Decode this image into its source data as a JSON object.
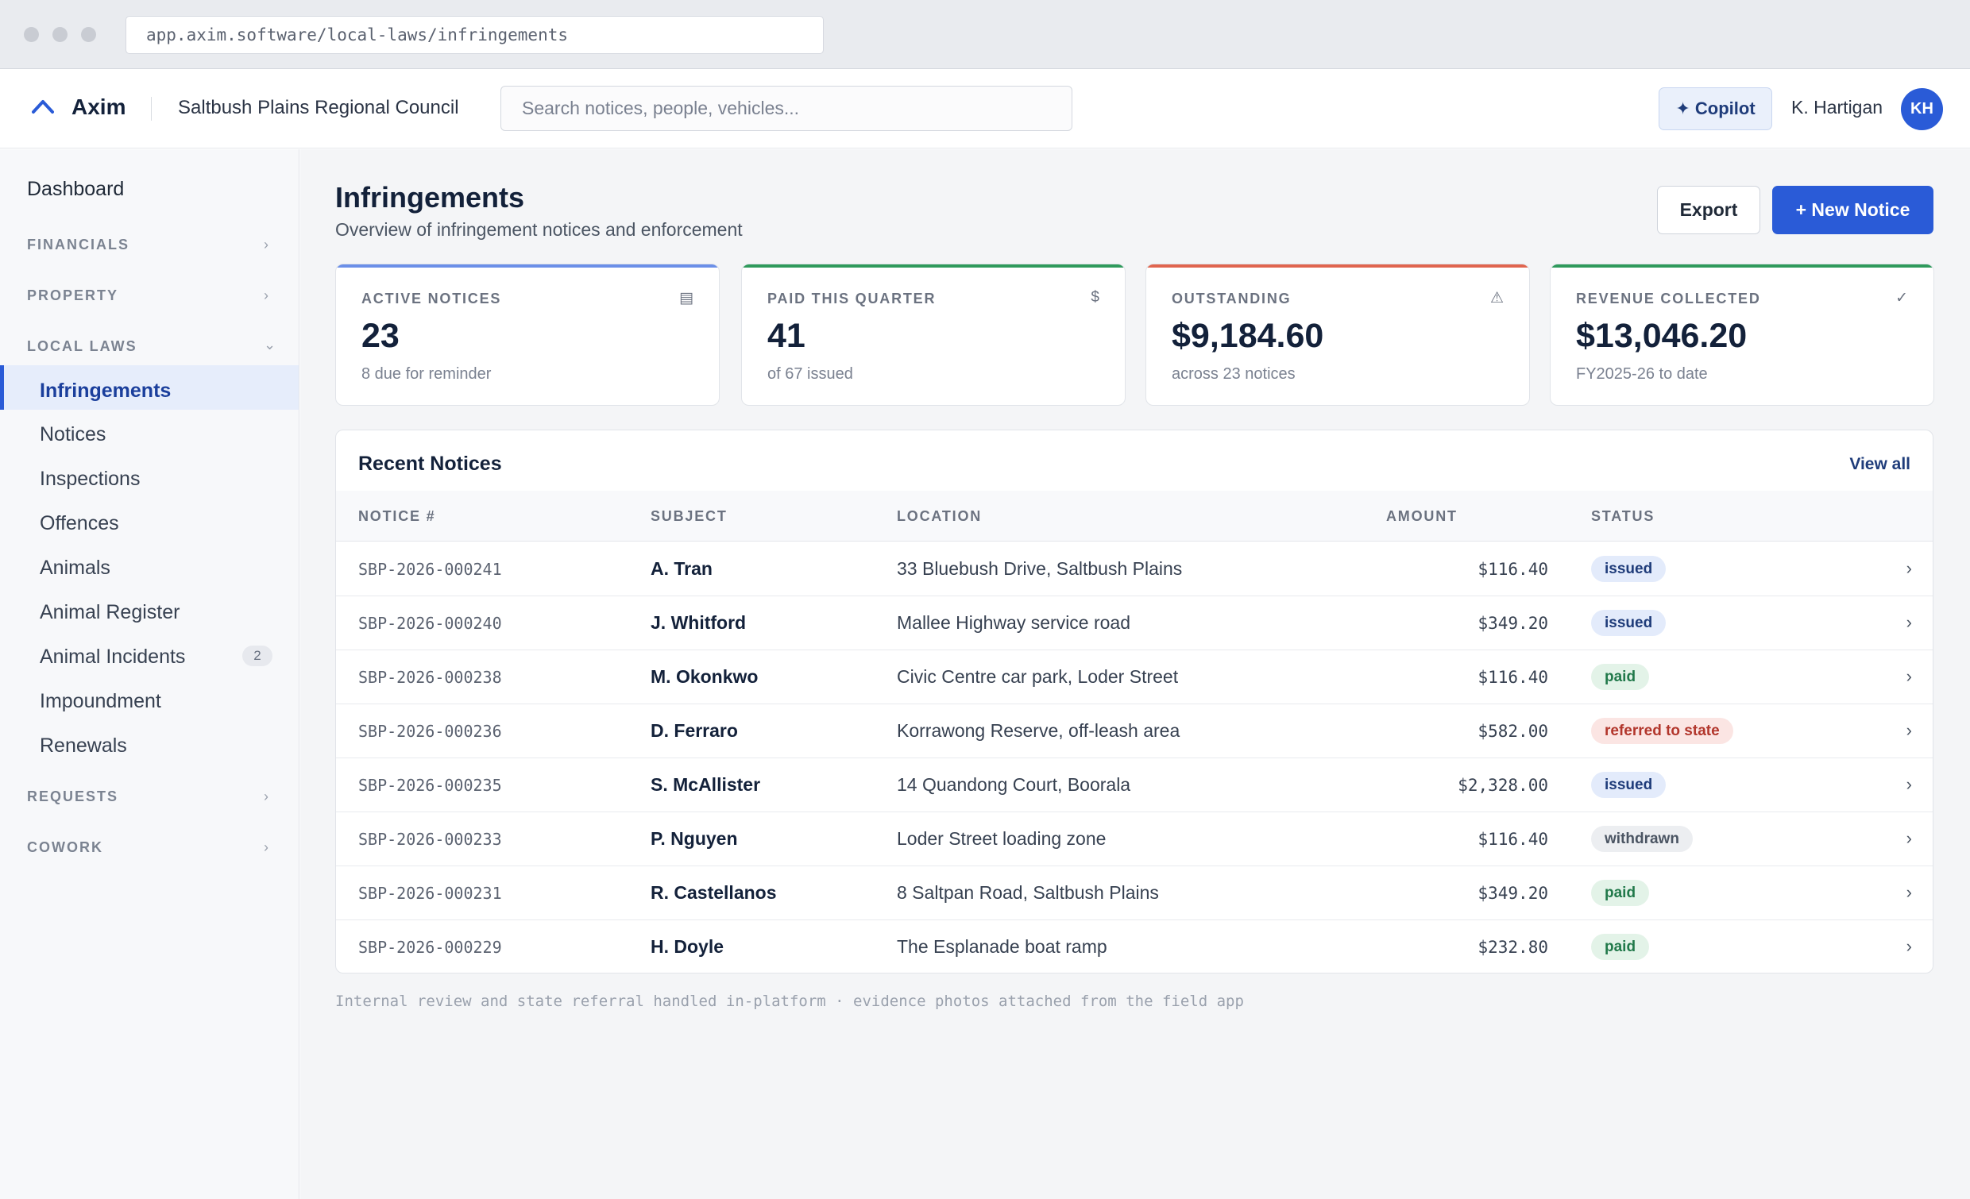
{
  "browser": {
    "url": "app.axim.software/local-laws/infringements"
  },
  "header": {
    "brand": "Axim",
    "org": "Saltbush Plains Regional Council",
    "search_placeholder": "Search notices, people, vehicles...",
    "copilot_label": "✦ Copilot",
    "user_name": "K. Hartigan",
    "user_initials": "KH"
  },
  "sidebar": {
    "dashboard": "Dashboard",
    "groups": {
      "financials": "FINANCIALS",
      "property": "PROPERTY",
      "local_laws": "LOCAL LAWS",
      "requests": "REQUESTS",
      "cowork": "COWORK"
    },
    "items": [
      {
        "label": "Infringements",
        "active": true
      },
      {
        "label": "Notices"
      },
      {
        "label": "Inspections"
      },
      {
        "label": "Offences"
      },
      {
        "label": "Animals"
      },
      {
        "label": "Animal Register"
      },
      {
        "label": "Animal Incidents",
        "count": "2"
      },
      {
        "label": "Impoundment"
      },
      {
        "label": "Renewals"
      }
    ]
  },
  "page": {
    "title": "Infringements",
    "subtitle": "Overview of infringement notices and enforcement",
    "export_label": "Export",
    "new_notice_label": "+ New Notice"
  },
  "cards": [
    {
      "label": "ACTIVE NOTICES",
      "icon": "▤",
      "value": "23",
      "sub": "8 due for reminder",
      "color": "#6b8fe8"
    },
    {
      "label": "PAID THIS QUARTER",
      "icon": "$",
      "value": "41",
      "sub": "of 67 issued",
      "color": "#2f9a5c"
    },
    {
      "label": "OUTSTANDING",
      "icon": "⚠",
      "value": "$9,184.60",
      "sub": "across 23 notices",
      "color": "#e0654f"
    },
    {
      "label": "REVENUE COLLECTED",
      "icon": "✓",
      "value": "$13,046.20",
      "sub": "FY2025-26 to date",
      "color": "#2f9a5c"
    }
  ],
  "recent": {
    "title": "Recent Notices",
    "view_all": "View all",
    "columns": {
      "notice": "NOTICE #",
      "subject": "SUBJECT",
      "location": "LOCATION",
      "amount": "AMOUNT",
      "status": "STATUS"
    },
    "rows": [
      {
        "notice": "SBP-2026-000241",
        "subject": "A. Tran",
        "location": "33 Bluebush Drive, Saltbush Plains",
        "amount": "$116.40",
        "status": "issued"
      },
      {
        "notice": "SBP-2026-000240",
        "subject": "J. Whitford",
        "location": "Mallee Highway service road",
        "amount": "$349.20",
        "status": "issued"
      },
      {
        "notice": "SBP-2026-000238",
        "subject": "M. Okonkwo",
        "location": "Civic Centre car park, Loder Street",
        "amount": "$116.40",
        "status": "paid"
      },
      {
        "notice": "SBP-2026-000236",
        "subject": "D. Ferraro",
        "location": "Korrawong Reserve, off-leash area",
        "amount": "$582.00",
        "status": "referred to state"
      },
      {
        "notice": "SBP-2026-000235",
        "subject": "S. McAllister",
        "location": "14 Quandong Court, Boorala",
        "amount": "$2,328.00",
        "status": "issued"
      },
      {
        "notice": "SBP-2026-000233",
        "subject": "P. Nguyen",
        "location": "Loder Street loading zone",
        "amount": "$116.40",
        "status": "withdrawn"
      },
      {
        "notice": "SBP-2026-000231",
        "subject": "R. Castellanos",
        "location": "8 Saltpan Road, Saltbush Plains",
        "amount": "$349.20",
        "status": "paid"
      },
      {
        "notice": "SBP-2026-000229",
        "subject": "H. Doyle",
        "location": "The Esplanade boat ramp",
        "amount": "$232.80",
        "status": "paid"
      }
    ]
  },
  "footnote": "Internal review and state referral handled in-platform · evidence photos attached from the field app"
}
